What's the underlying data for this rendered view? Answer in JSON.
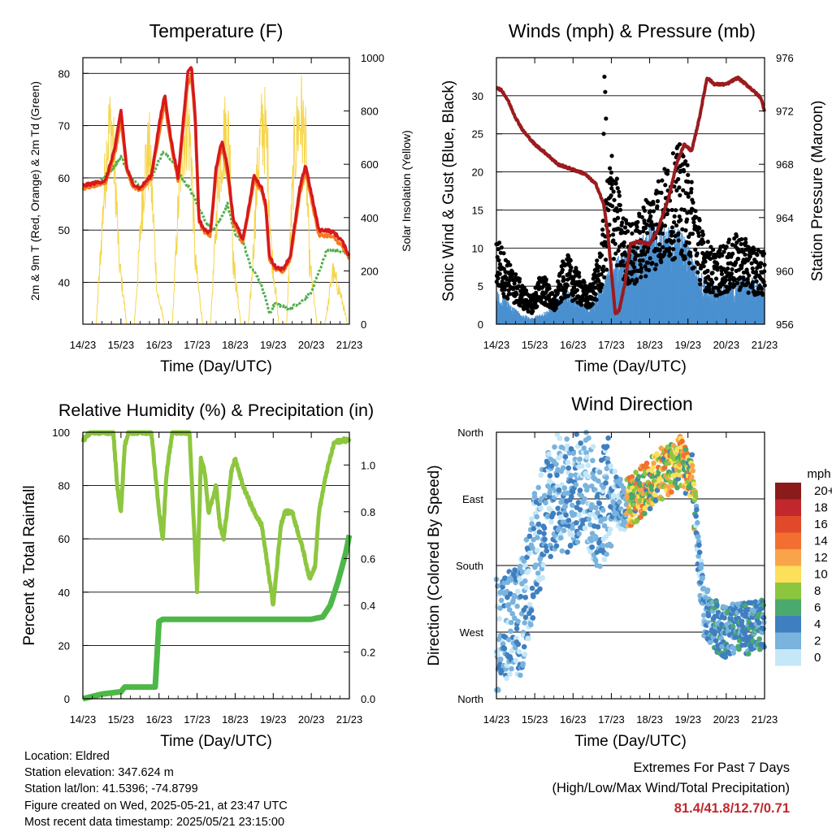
{
  "chart_data": [
    {
      "type": "line",
      "title": "Temperature (F)",
      "xlabel": "Time (Day/UTC)",
      "ylabel": "2m & 9m T (Red, Orange) & 2m Td (Green)",
      "ylabel_right": "Solar Insolation (Yellow)",
      "x_ticks": [
        "14/23",
        "15/23",
        "16/23",
        "17/23",
        "18/23",
        "19/23",
        "20/23",
        "21/23"
      ],
      "ylim": [
        32,
        83
      ],
      "y_ticks": [
        40,
        50,
        60,
        70,
        80
      ],
      "ylim_right": [
        0,
        1000
      ],
      "y_ticks_right": [
        0,
        200,
        400,
        600,
        800,
        1000
      ],
      "grid": "horizontal",
      "series": [
        {
          "name": "2m T",
          "color": "#d7191c",
          "x": [
            0,
            0.3,
            0.6,
            0.85,
            1,
            1.15,
            1.3,
            1.5,
            1.8,
            2,
            2.15,
            2.3,
            2.5,
            2.75,
            2.85,
            2.95,
            3.05,
            3.2,
            3.35,
            3.5,
            3.65,
            3.8,
            3.95,
            4.1,
            4.2,
            4.35,
            4.5,
            4.7,
            4.8,
            4.9,
            5.05,
            5.25,
            5.45,
            5.7,
            5.85,
            6,
            6.2,
            6.4,
            6.6,
            6.8,
            7
          ],
          "values": [
            58.5,
            59,
            59.5,
            66,
            73,
            62,
            59,
            58,
            60.5,
            70,
            76,
            68,
            60,
            80,
            81.5,
            72,
            52,
            50,
            49.5,
            62,
            67,
            62,
            52,
            50,
            48,
            54,
            60.5,
            58,
            55,
            45,
            43,
            42.5,
            45,
            58,
            62.5,
            57,
            50,
            50,
            49.5,
            48,
            45
          ]
        },
        {
          "name": "9m T",
          "color": "#f47c20",
          "x": [
            0,
            0.3,
            0.6,
            0.85,
            1,
            1.15,
            1.3,
            1.5,
            1.8,
            2,
            2.15,
            2.3,
            2.5,
            2.75,
            2.85,
            2.95,
            3.05,
            3.2,
            3.35,
            3.5,
            3.65,
            3.8,
            3.95,
            4.1,
            4.2,
            4.35,
            4.5,
            4.7,
            4.8,
            4.9,
            5.05,
            5.25,
            5.45,
            5.7,
            5.85,
            6,
            6.2,
            6.4,
            6.6,
            6.8,
            7
          ],
          "values": [
            58,
            58.5,
            59,
            65,
            71,
            61.5,
            58.5,
            57.5,
            60,
            68.5,
            74.5,
            67,
            59.5,
            78,
            79.5,
            71,
            51.5,
            49.5,
            49,
            61,
            66,
            61,
            51.5,
            49.5,
            47.5,
            53.5,
            59.5,
            57.5,
            54.5,
            44.5,
            42.5,
            42,
            44.5,
            57,
            61.5,
            56,
            49,
            49,
            48.5,
            47,
            44.5
          ]
        },
        {
          "name": "2m Td",
          "color": "#4daf4a",
          "x": [
            0,
            0.4,
            0.8,
            1,
            1.2,
            1.5,
            1.8,
            2.1,
            2.4,
            2.6,
            2.8,
            3,
            3.2,
            3.4,
            3.6,
            3.8,
            4,
            4.2,
            4.4,
            4.6,
            4.8,
            4.9,
            5.05,
            5.4,
            5.7,
            6,
            6.2,
            6.4,
            6.6,
            6.8,
            7
          ],
          "values": [
            58.5,
            59,
            62,
            64,
            61,
            58,
            60,
            65,
            63,
            60,
            58,
            55,
            52,
            50,
            52,
            55,
            49,
            48,
            43,
            41,
            37,
            34,
            36,
            35,
            36,
            38,
            42,
            46,
            46,
            46,
            45
          ]
        },
        {
          "name": "Solar Insolation",
          "color": "#f5d54a",
          "axis": "right",
          "x": [
            0,
            0.2,
            0.35,
            0.45,
            0.55,
            0.65,
            0.75,
            0.85,
            0.95,
            1.15,
            1.35,
            1.45,
            1.55,
            1.65,
            1.75,
            1.85,
            1.95,
            2.15,
            2.35,
            2.45,
            2.55,
            2.65,
            2.75,
            2.85,
            2.95,
            3.15,
            3.35,
            3.45,
            3.55,
            3.65,
            3.75,
            3.85,
            3.95,
            4.15,
            4.35,
            4.45,
            4.55,
            4.65,
            4.75,
            4.85,
            4.95,
            5.15,
            5.35,
            5.45,
            5.55,
            5.65,
            5.75,
            5.85,
            5.95,
            6.15,
            6.35,
            6.45,
            6.55,
            6.65,
            6.75,
            6.85,
            6.95,
            7
          ],
          "values": [
            0,
            0,
            0,
            280,
            600,
            880,
            930,
            700,
            300,
            0,
            0,
            250,
            550,
            760,
            800,
            500,
            150,
            0,
            0,
            350,
            700,
            870,
            950,
            800,
            300,
            0,
            0,
            300,
            650,
            820,
            900,
            850,
            300,
            0,
            0,
            250,
            600,
            850,
            950,
            800,
            350,
            0,
            0,
            400,
            780,
            940,
            960,
            820,
            300,
            0,
            0,
            100,
            250,
            200,
            150,
            80,
            0,
            0
          ]
        }
      ]
    },
    {
      "type": "scatter",
      "title": "Winds (mph) & Pressure (mb)",
      "xlabel": "Time (Day/UTC)",
      "ylabel": "Sonic Wind & Gust (Blue, Black)",
      "ylabel_right": "Station Pressure (Maroon)",
      "x_ticks": [
        "14/23",
        "15/23",
        "16/23",
        "17/23",
        "18/23",
        "19/23",
        "20/23",
        "21/23"
      ],
      "ylim": [
        0,
        35
      ],
      "y_ticks": [
        0,
        5,
        10,
        15,
        20,
        25,
        30
      ],
      "ylim_right": [
        956,
        976
      ],
      "y_ticks_right": [
        956,
        960,
        964,
        968,
        972,
        976
      ],
      "grid": "horizontal",
      "series": [
        {
          "name": "Sonic Wind",
          "color": "#4a90d0",
          "x": [
            0,
            0.3,
            0.6,
            0.9,
            1.2,
            1.5,
            1.8,
            2.1,
            2.4,
            2.7,
            3,
            3.3,
            3.6,
            3.9,
            4.2,
            4.5,
            4.8,
            5.1,
            5.4,
            5.7,
            6,
            6.3,
            6.6,
            6.9,
            7
          ],
          "values": [
            3,
            2,
            1,
            0.5,
            1,
            1.5,
            3,
            2,
            1.5,
            3,
            5,
            6,
            7,
            8,
            8.5,
            8,
            8,
            6,
            4,
            3,
            3.5,
            4,
            4,
            3.5,
            3
          ]
        },
        {
          "name": "Gust",
          "color": "#000000",
          "x": [
            0,
            0.3,
            0.6,
            0.9,
            1.2,
            1.5,
            1.8,
            2.1,
            2.4,
            2.7,
            3,
            3.3,
            3.6,
            3.9,
            4.2,
            4.5,
            4.8,
            5.1,
            5.4,
            5.7,
            6,
            6.3,
            6.6,
            6.9,
            7
          ],
          "values": [
            10,
            7,
            5,
            3,
            6,
            3,
            8,
            6,
            4,
            8,
            20,
            12,
            11,
            14,
            16,
            18,
            20,
            16,
            10,
            8,
            9,
            10,
            9,
            8,
            8
          ]
        },
        {
          "name": "Station Pressure",
          "color": "#9b1b1e",
          "axis": "right",
          "x": [
            0,
            0.15,
            0.3,
            0.5,
            0.7,
            1,
            1.3,
            1.6,
            2,
            2.3,
            2.6,
            2.8,
            2.9,
            3,
            3.1,
            3.2,
            3.35,
            3.5,
            3.7,
            4,
            4.2,
            4.5,
            4.7,
            4.9,
            5.1,
            5.3,
            5.5,
            5.7,
            6,
            6.3,
            6.6,
            6.9,
            7
          ],
          "values": [
            973.8,
            973.5,
            972.8,
            971.5,
            970.5,
            969.5,
            968.8,
            968,
            967.6,
            967.3,
            966.5,
            965,
            963,
            960,
            956.8,
            957,
            959,
            962,
            962.2,
            962,
            963,
            965.5,
            968,
            969.5,
            969,
            971.5,
            974.5,
            974,
            974,
            974.5,
            973.8,
            973,
            972
          ]
        }
      ]
    },
    {
      "type": "line",
      "title": "Relative Humidity (%) & Precipitation (in)",
      "xlabel": "Time (Day/UTC)",
      "ylabel": "Percent & Total Rainfall",
      "x_ticks": [
        "14/23",
        "15/23",
        "16/23",
        "17/23",
        "18/23",
        "19/23",
        "20/23",
        "21/23"
      ],
      "ylim": [
        0,
        100
      ],
      "y_ticks": [
        0,
        20,
        40,
        60,
        80,
        100
      ],
      "ylim_right": [
        0,
        1.14
      ],
      "y_ticks_right": [
        0.0,
        0.2,
        0.4,
        0.6,
        0.8,
        1.0
      ],
      "grid": "horizontal",
      "series": [
        {
          "name": "Relative Humidity",
          "color": "#8dc63f",
          "x": [
            0,
            0.2,
            0.5,
            0.8,
            0.9,
            1,
            1.1,
            1.2,
            1.5,
            1.8,
            2,
            2.1,
            2.2,
            2.35,
            2.6,
            2.8,
            2.9,
            3,
            3.1,
            3.2,
            3.3,
            3.5,
            3.6,
            3.7,
            3.9,
            4,
            4.2,
            4.5,
            4.7,
            4.9,
            5,
            5.1,
            5.2,
            5.3,
            5.5,
            5.6,
            5.8,
            5.95,
            6.1,
            6.2,
            6.4,
            6.6,
            6.8,
            7
          ],
          "values": [
            97,
            100,
            100,
            100,
            80,
            70,
            95,
            100,
            100,
            100,
            70,
            60,
            85,
            100,
            100,
            100,
            70,
            40,
            90,
            85,
            70,
            80,
            65,
            60,
            85,
            90,
            80,
            70,
            65,
            45,
            35,
            50,
            65,
            70,
            70,
            65,
            55,
            45,
            50,
            70,
            85,
            96,
            97,
            97
          ]
        },
        {
          "name": "Total Precipitation",
          "color": "#4db848",
          "axis": "right",
          "x": [
            0,
            0.5,
            1,
            1.1,
            1.9,
            2,
            2.1,
            3,
            4,
            5,
            6,
            6.3,
            6.5,
            6.7,
            6.9,
            7
          ],
          "values": [
            0.0,
            0.02,
            0.03,
            0.05,
            0.05,
            0.33,
            0.34,
            0.34,
            0.34,
            0.34,
            0.34,
            0.35,
            0.4,
            0.5,
            0.62,
            0.7
          ]
        }
      ]
    },
    {
      "type": "scatter",
      "title": "Wind Direction",
      "xlabel": "Time (Day/UTC)",
      "ylabel": "Direction (Colored By Speed)",
      "x_ticks": [
        "14/23",
        "15/23",
        "16/23",
        "17/23",
        "18/23",
        "19/23",
        "20/23",
        "21/23"
      ],
      "y_ticks": [
        "North",
        "West",
        "South",
        "East",
        "North"
      ],
      "ylim": [
        0,
        360
      ],
      "grid": "horizontal",
      "colorbar": {
        "title": "mph",
        "labels": [
          "20+",
          "18",
          "16",
          "14",
          "12",
          "10",
          "8",
          "6",
          "4",
          "2",
          "0"
        ],
        "colors": [
          "#8b1a1a",
          "#c0282d",
          "#e04a2a",
          "#f26f31",
          "#f9a44a",
          "#fde05a",
          "#8cc63f",
          "#4aa96c",
          "#3f7fc0",
          "#79b3de",
          "#c6e7f7"
        ]
      },
      "series": [
        {
          "name": "Direction",
          "x": [
            0,
            0.3,
            0.6,
            1,
            1.3,
            1.6,
            2,
            2.3,
            2.6,
            3,
            3.3,
            3.6,
            3.9,
            4.2,
            4.5,
            4.8,
            5.1,
            5.4,
            5.7,
            6,
            6.3,
            6.6,
            6.9,
            7
          ],
          "values": [
            90,
            95,
            100,
            200,
            260,
            280,
            270,
            300,
            250,
            280,
            260,
            270,
            285,
            300,
            310,
            320,
            300,
            120,
            100,
            90,
            95,
            95,
            100,
            95
          ]
        }
      ]
    }
  ],
  "info": {
    "location": "Location: Eldred",
    "elevation": "Station elevation: 347.624 m",
    "latlon": "Station lat/lon: 41.5396; -74.8799",
    "created": "Figure created on Wed, 2025-05-21, at 23:47 UTC",
    "latest": "Most recent data timestamp: 2025/05/21 23:15:00"
  },
  "extremes": {
    "line1": "Extremes For Past 7 Days",
    "line2": "(High/Low/Max Wind/Total Precipitation)",
    "values": "81.4/41.8/12.7/0.71"
  }
}
